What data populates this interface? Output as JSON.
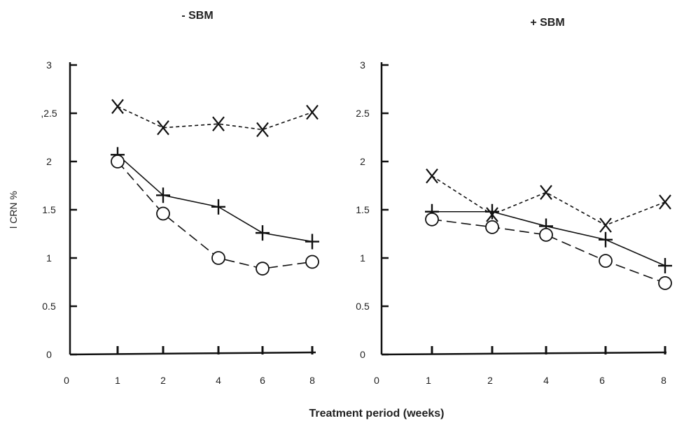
{
  "figure": {
    "xlabel": "Treatment period (weeks)",
    "ylabel": "l CRN %"
  },
  "chart_data": [
    {
      "type": "line",
      "title": "- SBM",
      "categories": [
        "1",
        "2",
        "4",
        "6",
        "8"
      ],
      "x_tick_labels": [
        "0",
        "1",
        "2",
        "4",
        "6",
        "8"
      ],
      "y_tick_labels": [
        "0",
        "0.5",
        "1",
        "1.5",
        "2",
        ",2.5",
        "3"
      ],
      "ylim": [
        0,
        3
      ],
      "xlabel": "Treatment period (weeks)",
      "ylabel": "l CRN %",
      "grid": false,
      "series": [
        {
          "marker": "x",
          "line": "dotted",
          "values": [
            2.57,
            2.35,
            2.39,
            2.33,
            2.51
          ]
        },
        {
          "marker": "plus",
          "line": "solid",
          "values": [
            2.07,
            1.65,
            1.53,
            1.26,
            1.17
          ]
        },
        {
          "marker": "circle",
          "line": "dashed",
          "values": [
            2.0,
            1.46,
            1.0,
            0.89,
            0.96
          ]
        }
      ]
    },
    {
      "type": "line",
      "title": "+ SBM",
      "categories": [
        "1",
        "2",
        "4",
        "6",
        "8"
      ],
      "x_tick_labels": [
        "0",
        "1",
        "2",
        "4",
        "6",
        "8"
      ],
      "y_tick_labels": [
        "0",
        "0.5",
        "1",
        "1.5",
        "2",
        "2.5",
        "3"
      ],
      "ylim": [
        0,
        3
      ],
      "xlabel": "Treatment period (weeks)",
      "ylabel": "",
      "grid": false,
      "series": [
        {
          "marker": "x",
          "line": "dotted",
          "values": [
            1.85,
            1.45,
            1.68,
            1.34,
            1.58
          ]
        },
        {
          "marker": "plus",
          "line": "solid",
          "values": [
            1.48,
            1.48,
            1.33,
            1.19,
            0.92
          ]
        },
        {
          "marker": "circle",
          "line": "dashed",
          "values": [
            1.4,
            1.32,
            1.24,
            0.97,
            0.74
          ]
        }
      ]
    }
  ]
}
